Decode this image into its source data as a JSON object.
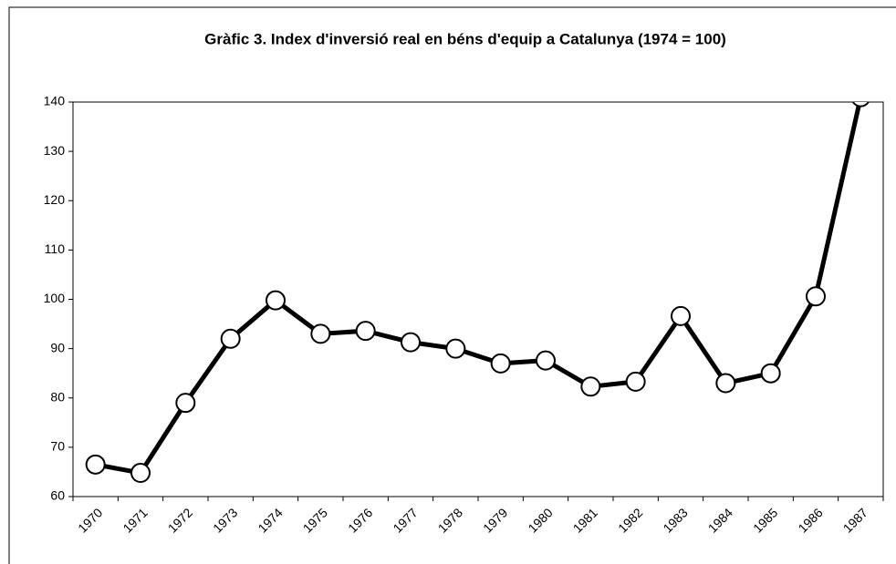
{
  "chart_data": {
    "type": "line",
    "title": "Gràfic 3. Index d'inversió real en béns d'equip a Catalunya (1974 = 100)",
    "categories": [
      "1970",
      "1971",
      "1972",
      "1973",
      "1974",
      "1975",
      "1976",
      "1977",
      "1978",
      "1979",
      "1980",
      "1981",
      "1982",
      "1983",
      "1984",
      "1985",
      "1986",
      "1987"
    ],
    "series": [
      {
        "color": "#000000",
        "values": [
          66.5,
          64.8,
          79,
          92,
          99.8,
          93,
          93.6,
          91.3,
          90,
          87,
          87.6,
          82.3,
          83.3,
          96.6,
          83,
          85,
          100.6,
          141
        ]
      }
    ],
    "ylim": [
      60,
      140
    ],
    "yticks": [
      60,
      70,
      80,
      90,
      100,
      110,
      120,
      130,
      140
    ]
  }
}
